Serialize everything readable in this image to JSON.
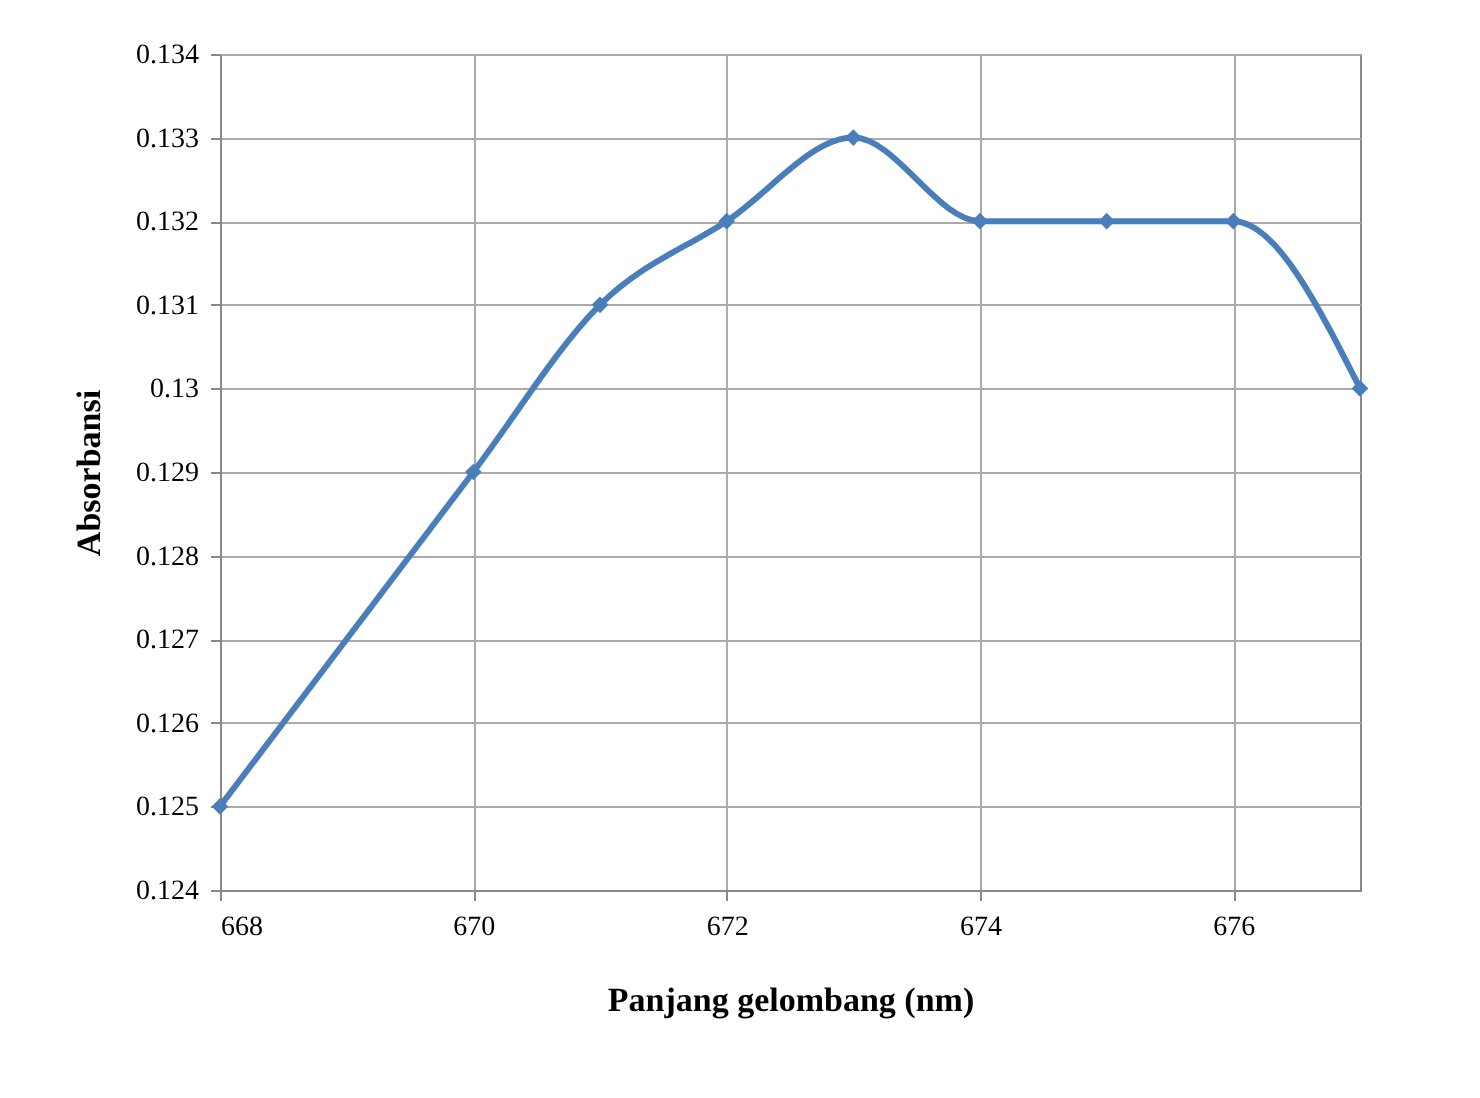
{
  "chart_data": {
    "type": "line",
    "xlabel": "Panjang gelombang (nm)",
    "ylabel": "Absorbansi",
    "x": [
      668,
      670,
      671,
      672,
      673,
      674,
      675,
      676,
      677
    ],
    "series": [
      {
        "color": "#4a7ebb",
        "values": [
          0.125,
          0.129,
          0.131,
          0.132,
          0.133,
          0.132,
          0.132,
          0.132,
          0.13
        ]
      }
    ],
    "xlim": [
      668,
      677
    ],
    "xticks": [
      668,
      670,
      672,
      674,
      676
    ],
    "ylim": [
      0.124,
      0.134
    ],
    "yticks": [
      0.124,
      0.125,
      0.126,
      0.127,
      0.128,
      0.129,
      {
        "value": 0.13,
        "label": "0.13"
      },
      0.131,
      0.132,
      0.133,
      0.134
    ],
    "grid": true,
    "marker": "diamond",
    "line_style": "solid"
  }
}
